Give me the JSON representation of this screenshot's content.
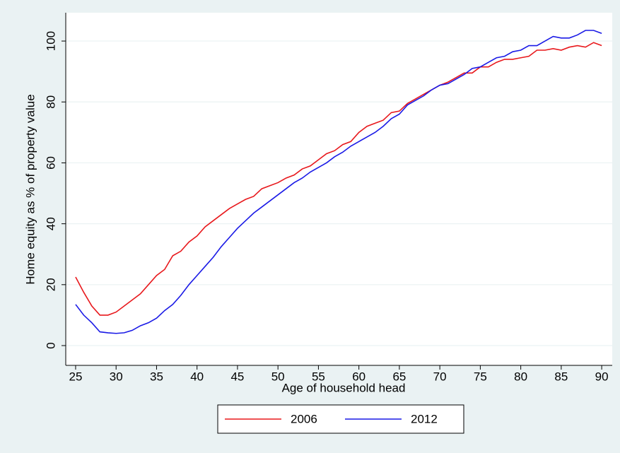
{
  "chart_data": {
    "type": "line",
    "x_label": "Age of household head",
    "y_label": "Home equity as % of property value",
    "x": [
      25,
      26,
      27,
      28,
      29,
      30,
      31,
      32,
      33,
      34,
      35,
      36,
      37,
      38,
      39,
      40,
      41,
      42,
      43,
      44,
      45,
      46,
      47,
      48,
      49,
      50,
      51,
      52,
      53,
      54,
      55,
      56,
      57,
      58,
      59,
      60,
      61,
      62,
      63,
      64,
      65,
      66,
      67,
      68,
      69,
      70,
      71,
      72,
      73,
      74,
      75,
      76,
      77,
      78,
      79,
      80,
      81,
      82,
      83,
      84,
      85,
      86,
      87,
      88,
      89,
      90
    ],
    "series": [
      {
        "name": "2006",
        "color": "#e8181c",
        "values": [
          22.5,
          17.5,
          13,
          10,
          10,
          11,
          13,
          15,
          17,
          20,
          23,
          25,
          29.5,
          31,
          34,
          36,
          39,
          41,
          43,
          45,
          46.5,
          48,
          49,
          51.5,
          52.5,
          53.5,
          55,
          56,
          58,
          59,
          61,
          63,
          64,
          66,
          67,
          70,
          72,
          73,
          74,
          76.5,
          77,
          79.5,
          81,
          82.5,
          84,
          85.5,
          86.5,
          88,
          89.5,
          89.5,
          91.5,
          91.5,
          93,
          94,
          94,
          94.5,
          95,
          97,
          97,
          97.5,
          97,
          98,
          98.5,
          98,
          99.5,
          98.5
        ]
      },
      {
        "name": "2012",
        "color": "#1a1ae6",
        "values": [
          13.5,
          10,
          7.5,
          4.5,
          4.2,
          4,
          4.2,
          5,
          6.5,
          7.5,
          9,
          11.5,
          13.5,
          16.5,
          20,
          23,
          26,
          29,
          32.5,
          35.5,
          38.5,
          41,
          43.5,
          45.5,
          47.5,
          49.5,
          51.5,
          53.5,
          55,
          57,
          58.5,
          60,
          62,
          63.5,
          65.5,
          67,
          68.5,
          70,
          72,
          74.5,
          76,
          79,
          80.5,
          82,
          84,
          85.5,
          86,
          87.5,
          89,
          91,
          91.5,
          93,
          94.5,
          95,
          96.5,
          97,
          98.5,
          98.5,
          100,
          101.5,
          101,
          101,
          102,
          103.5,
          103.5,
          102.5
        ]
      }
    ],
    "xlim": [
      23.78,
      91.3
    ],
    "ylim": [
      -6.5,
      109.3
    ],
    "xticks": [
      25,
      30,
      35,
      40,
      45,
      50,
      55,
      60,
      65,
      70,
      75,
      80,
      85,
      90
    ],
    "yticks": [
      0,
      20,
      40,
      60,
      80,
      100
    ],
    "grid": true,
    "legend": "bottom"
  }
}
